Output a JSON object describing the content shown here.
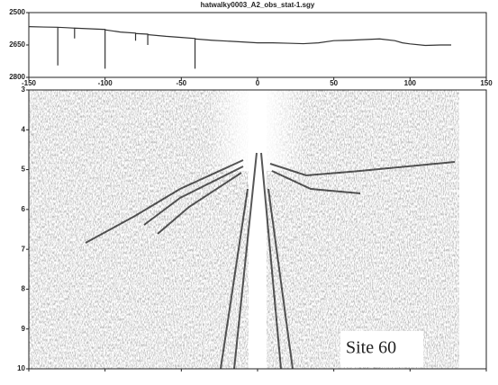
{
  "chart_data": [
    {
      "type": "line",
      "title": "hatwalky0003_A2_obs_stat-1.sgy",
      "x": [
        -150,
        -140,
        -131,
        -131,
        -131,
        -125,
        -120,
        -120,
        -120,
        -110,
        -100,
        -100,
        -100,
        -90,
        -80,
        -80,
        -80,
        -72,
        -72,
        -72,
        -60,
        -50,
        -41,
        -41,
        -41,
        -30,
        -20,
        -10,
        0,
        10,
        20,
        30,
        40,
        50,
        60,
        70,
        80,
        90,
        95,
        100,
        110,
        120,
        127
      ],
      "series": [
        {
          "color": "#333333",
          "values": [
            2565,
            2567,
            2568,
            2745,
            2568,
            2570,
            2572,
            2620,
            2572,
            2575,
            2578,
            2760,
            2580,
            2590,
            2595,
            2630,
            2597,
            2600,
            2650,
            2602,
            2610,
            2615,
            2620,
            2760,
            2622,
            2628,
            2632,
            2636,
            2640,
            2640,
            2642,
            2644,
            2640,
            2630,
            2628,
            2625,
            2622,
            2630,
            2640,
            2645,
            2652,
            2650,
            2650
          ]
        }
      ],
      "xlim": [
        -150,
        150
      ],
      "xticks": [
        -150,
        -100,
        -50,
        0,
        50,
        100,
        150
      ],
      "ylim": [
        2800,
        2500
      ],
      "yticks": [
        2500,
        2650,
        2800
      ]
    },
    {
      "type": "seismic",
      "annotation": "Site 60",
      "xlim": [
        -150,
        150
      ],
      "xticks": [
        -150,
        -100,
        -50,
        0,
        50,
        100,
        150
      ],
      "ylim": [
        10,
        3
      ],
      "yticks": [
        3,
        4,
        5,
        6,
        7,
        8,
        9,
        10
      ]
    }
  ]
}
